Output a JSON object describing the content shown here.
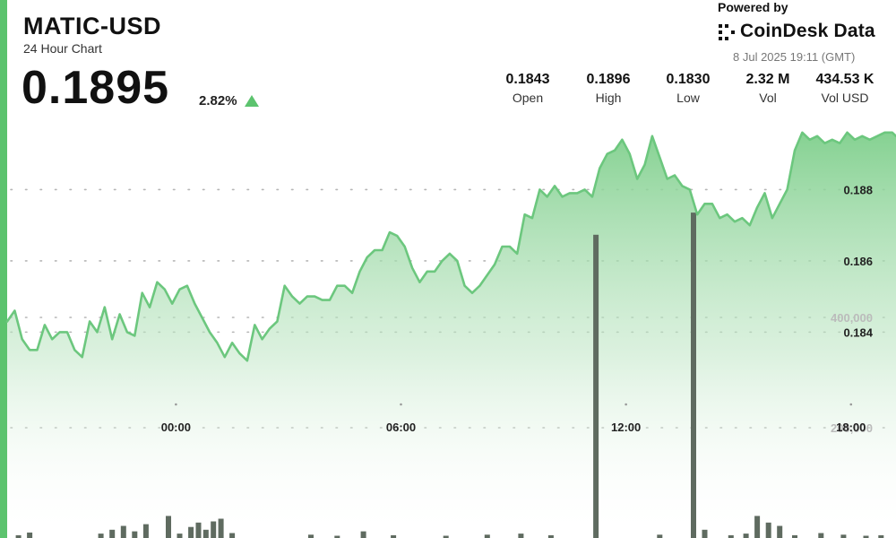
{
  "header": {
    "pair": "MATIC-USD",
    "subtitle": "24 Hour Chart",
    "price": "0.1895",
    "change": "2.82%"
  },
  "brand": {
    "powered_by": "Powered by",
    "name": "CoinDesk Data",
    "timestamp": "8 Jul 2025 19:11 (GMT)"
  },
  "stats": [
    {
      "value": "0.1843",
      "label": "Open"
    },
    {
      "value": "0.1896",
      "label": "High"
    },
    {
      "value": "0.1830",
      "label": "Low"
    },
    {
      "value": "2.32 M",
      "label": "Vol"
    },
    {
      "value": "434.53 K",
      "label": "Vol USD"
    }
  ],
  "colors": {
    "accent": "#5cc36e",
    "line": "#6cc77e",
    "volume_bar": "#5f6b60",
    "up_arrow": "#5cc36e"
  },
  "chart_data": {
    "type": "line",
    "x_axis": {
      "tick_labels": [
        "00:00",
        "06:00",
        "12:00",
        "18:00"
      ],
      "tick_hours": [
        0,
        6,
        12,
        18
      ],
      "range_hours": [
        -4.5,
        19.2
      ]
    },
    "price_axis": {
      "tick_labels": [
        "0.188",
        "0.186",
        "0.184"
      ],
      "tick_values": [
        0.188,
        0.186,
        0.184
      ],
      "range": [
        0.1825,
        0.1903
      ]
    },
    "volume_axis": {
      "tick_labels": [
        "400,000",
        "200,000"
      ],
      "tick_values": [
        400000,
        200000
      ]
    },
    "grid": "dotted",
    "series": [
      {
        "kind": "price",
        "x": [
          -4.5,
          -4.3,
          -4.1,
          -3.9,
          -3.7,
          -3.5,
          -3.3,
          -3.1,
          -2.9,
          -2.7,
          -2.5,
          -2.3,
          -2.1,
          -1.9,
          -1.7,
          -1.5,
          -1.3,
          -1.1,
          -0.9,
          -0.7,
          -0.5,
          -0.3,
          -0.1,
          0.1,
          0.3,
          0.5,
          0.7,
          0.9,
          1.1,
          1.3,
          1.5,
          1.7,
          1.9,
          2.1,
          2.3,
          2.5,
          2.7,
          2.9,
          3.1,
          3.3,
          3.5,
          3.7,
          3.9,
          4.1,
          4.3,
          4.5,
          4.7,
          4.9,
          5.1,
          5.3,
          5.5,
          5.7,
          5.9,
          6.1,
          6.3,
          6.5,
          6.7,
          6.9,
          7.1,
          7.3,
          7.5,
          7.7,
          7.9,
          8.1,
          8.3,
          8.5,
          8.7,
          8.9,
          9.1,
          9.3,
          9.5,
          9.7,
          9.9,
          10.1,
          10.3,
          10.5,
          10.7,
          10.9,
          11.1,
          11.3,
          11.5,
          11.7,
          11.9,
          12.1,
          12.3,
          12.5,
          12.7,
          12.9,
          13.1,
          13.3,
          13.5,
          13.7,
          13.9,
          14.1,
          14.3,
          14.5,
          14.7,
          14.9,
          15.1,
          15.3,
          15.5,
          15.7,
          15.9,
          16.1,
          16.3,
          16.5,
          16.7,
          16.9,
          17.1,
          17.3,
          17.5,
          17.7,
          17.9,
          18.1,
          18.3,
          18.5,
          18.7,
          18.9,
          19.1,
          19.2
        ],
        "values": [
          0.1843,
          0.1846,
          0.1838,
          0.1835,
          0.1835,
          0.1842,
          0.1838,
          0.184,
          0.184,
          0.1835,
          0.1833,
          0.1843,
          0.184,
          0.1847,
          0.1838,
          0.1845,
          0.184,
          0.1839,
          0.1851,
          0.1847,
          0.1854,
          0.1852,
          0.1848,
          0.1852,
          0.1853,
          0.1848,
          0.1844,
          0.184,
          0.1837,
          0.1833,
          0.1837,
          0.1834,
          0.1832,
          0.1842,
          0.1838,
          0.1841,
          0.1843,
          0.1853,
          0.185,
          0.1848,
          0.185,
          0.185,
          0.1849,
          0.1849,
          0.1853,
          0.1853,
          0.1851,
          0.1857,
          0.1861,
          0.1863,
          0.1863,
          0.1868,
          0.1867,
          0.1864,
          0.1858,
          0.1854,
          0.1857,
          0.1857,
          0.186,
          0.1862,
          0.186,
          0.1853,
          0.1851,
          0.1853,
          0.1856,
          0.1859,
          0.1864,
          0.1864,
          0.1862,
          0.1873,
          0.1872,
          0.188,
          0.1878,
          0.1881,
          0.1878,
          0.1879,
          0.1879,
          0.188,
          0.1878,
          0.1886,
          0.189,
          0.1891,
          0.1894,
          0.189,
          0.1883,
          0.1887,
          0.1895,
          0.1889,
          0.1883,
          0.1884,
          0.1881,
          0.188,
          0.1873,
          0.1876,
          0.1876,
          0.1872,
          0.1873,
          0.1871,
          0.1872,
          0.187,
          0.1875,
          0.1879,
          0.1872,
          0.1876,
          0.188,
          0.1891,
          0.1896,
          0.1894,
          0.1895,
          0.1893,
          0.1894,
          0.1893,
          0.1896,
          0.1894,
          0.1895,
          0.1894,
          0.1895,
          0.1896,
          0.1896,
          0.1895
        ]
      },
      {
        "kind": "volume",
        "x": [
          -4.2,
          -3.9,
          -2.0,
          -1.7,
          -1.4,
          -1.1,
          -0.8,
          -0.2,
          0.1,
          0.4,
          0.6,
          0.8,
          1.0,
          1.2,
          1.5,
          3.6,
          4.3,
          5.0,
          5.8,
          7.2,
          8.3,
          9.2,
          10.0,
          11.2,
          12.9,
          13.8,
          14.1,
          14.8,
          15.2,
          15.5,
          15.8,
          16.1,
          16.5,
          17.2,
          17.8,
          18.4,
          18.8
        ],
        "values": [
          5000,
          10000,
          8000,
          15000,
          22000,
          12000,
          25000,
          40000,
          8000,
          20000,
          28000,
          15000,
          30000,
          35000,
          9000,
          6000,
          4000,
          12000,
          5000,
          4000,
          6000,
          8000,
          5000,
          550000,
          6000,
          590000,
          15000,
          5000,
          8000,
          40000,
          28000,
          22000,
          5000,
          9000,
          6000,
          4000,
          5000
        ]
      }
    ]
  }
}
